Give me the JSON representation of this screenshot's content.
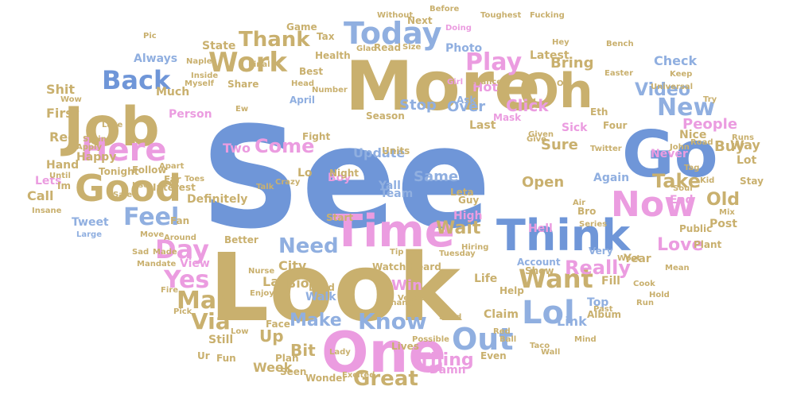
{
  "palette": {
    "blue": "#6f96d8",
    "tan": "#c9b06e",
    "pink": "#eb9ce0",
    "light_blue": "#90afe0"
  },
  "words": [
    {
      "text": "See"
    },
    {
      "text": "Look"
    },
    {
      "text": "More"
    },
    {
      "text": "One"
    },
    {
      "text": "Go"
    },
    {
      "text": "Time"
    },
    {
      "text": "Job"
    },
    {
      "text": "Oh"
    },
    {
      "text": "Think"
    },
    {
      "text": "Good"
    },
    {
      "text": "Here"
    },
    {
      "text": "Now"
    },
    {
      "text": "Today"
    },
    {
      "text": "Back"
    },
    {
      "text": "Work"
    },
    {
      "text": "Want"
    },
    {
      "text": "Lol"
    },
    {
      "text": "Out"
    },
    {
      "text": "Day"
    },
    {
      "text": "Man"
    },
    {
      "text": "Yes"
    },
    {
      "text": "Feel"
    },
    {
      "text": "Play"
    },
    {
      "text": "Know"
    },
    {
      "text": "Great"
    },
    {
      "text": "Really"
    },
    {
      "text": "New"
    },
    {
      "text": "Via"
    },
    {
      "text": "Thank"
    },
    {
      "text": "Need"
    },
    {
      "text": "Come"
    },
    {
      "text": "Take"
    },
    {
      "text": "Make"
    },
    {
      "text": "Video"
    },
    {
      "text": "Wait"
    },
    {
      "text": "Love"
    },
    {
      "text": "Old"
    },
    {
      "text": "Thing"
    },
    {
      "text": "Bring"
    },
    {
      "text": "People"
    },
    {
      "text": "Stop"
    },
    {
      "text": "Sure"
    },
    {
      "text": "Open"
    },
    {
      "text": "Buy"
    },
    {
      "text": "Same"
    },
    {
      "text": "Bit"
    },
    {
      "text": "Click"
    },
    {
      "text": "Over"
    },
    {
      "text": "Check"
    },
    {
      "text": "Lot"
    },
    {
      "text": "Way"
    },
    {
      "text": "Win"
    },
    {
      "text": "Link"
    },
    {
      "text": "Week"
    },
    {
      "text": "Always"
    },
    {
      "text": "Update"
    },
    {
      "text": "First"
    },
    {
      "text": "Red"
    },
    {
      "text": "Shit"
    },
    {
      "text": "Happy"
    },
    {
      "text": "Call"
    },
    {
      "text": "Tweet"
    },
    {
      "text": "Definitely"
    },
    {
      "text": "City"
    },
    {
      "text": "Bio"
    },
    {
      "text": "Latest"
    },
    {
      "text": "Photo"
    },
    {
      "text": "Person"
    },
    {
      "text": "Stay"
    },
    {
      "text": "Walk"
    },
    {
      "text": "Life"
    },
    {
      "text": "Hot"
    },
    {
      "text": "Team"
    },
    {
      "text": "Two"
    },
    {
      "text": "Boy"
    },
    {
      "text": "Night"
    },
    {
      "text": "Top"
    },
    {
      "text": "Never"
    },
    {
      "text": "End"
    },
    {
      "text": "Post"
    },
    {
      "text": "Lets"
    },
    {
      "text": "Hand"
    },
    {
      "text": "Year"
    },
    {
      "text": "Nice"
    },
    {
      "text": "Still"
    },
    {
      "text": "Hell"
    },
    {
      "text": "Yall"
    },
    {
      "text": "Damn"
    },
    {
      "text": "Again"
    },
    {
      "text": "Sick"
    },
    {
      "text": "Last"
    },
    {
      "text": "Fill"
    },
    {
      "text": "Best"
    },
    {
      "text": "Much"
    },
    {
      "text": "Share"
    },
    {
      "text": "High"
    },
    {
      "text": "Very"
    },
    {
      "text": "Seen"
    },
    {
      "text": "Up"
    },
    {
      "text": "Far"
    },
    {
      "text": "Land"
    },
    {
      "text": "Wonder"
    },
    {
      "text": "Excited"
    },
    {
      "text": "Fun"
    },
    {
      "text": "Plan"
    },
    {
      "text": "Face"
    },
    {
      "text": "Lives"
    },
    {
      "text": "Ask"
    },
    {
      "text": "Read"
    },
    {
      "text": "Game"
    },
    {
      "text": "State"
    },
    {
      "text": "Health"
    },
    {
      "text": "Next"
    },
    {
      "text": "Doing"
    },
    {
      "text": "Tax"
    },
    {
      "text": "Size"
    },
    {
      "text": "Girl"
    },
    {
      "text": "Chances"
    },
    {
      "text": "Four"
    },
    {
      "text": "Public"
    },
    {
      "text": "Series"
    },
    {
      "text": "Plant"
    },
    {
      "text": "Mean"
    },
    {
      "text": "Woot"
    },
    {
      "text": "Account"
    },
    {
      "text": "Mask"
    },
    {
      "text": "Season"
    },
    {
      "text": "April"
    },
    {
      "text": "Fight"
    },
    {
      "text": "Units"
    },
    {
      "text": "Guy"
    },
    {
      "text": "Leta"
    },
    {
      "text": "Start"
    },
    {
      "text": "Watch"
    },
    {
      "text": "Heard"
    },
    {
      "text": "Tuesday"
    },
    {
      "text": "Show"
    },
    {
      "text": "Help"
    },
    {
      "text": "Album"
    },
    {
      "text": "Claim"
    },
    {
      "text": "Even"
    },
    {
      "text": "Better"
    },
    {
      "text": "View"
    },
    {
      "text": "Nurse"
    },
    {
      "text": "Enjoy"
    },
    {
      "text": "Interest"
    },
    {
      "text": "Follow"
    },
    {
      "text": "Made"
    },
    {
      "text": "Tonight"
    },
    {
      "text": "Spring"
    },
    {
      "text": "Apply"
    },
    {
      "text": "Fan"
    },
    {
      "text": "Toes"
    },
    {
      "text": "Apart"
    },
    {
      "text": "Large"
    },
    {
      "text": "Move"
    },
    {
      "text": "Around"
    },
    {
      "text": "Talk"
    },
    {
      "text": "Crazy"
    },
    {
      "text": "Try"
    },
    {
      "text": "John"
    },
    {
      "text": "Road"
    },
    {
      "text": "Fucking"
    },
    {
      "text": "Toughest"
    },
    {
      "text": "Before"
    },
    {
      "text": "Without"
    },
    {
      "text": "Glad"
    },
    {
      "text": "Final"
    },
    {
      "text": "Myself"
    },
    {
      "text": "Inside"
    },
    {
      "text": "Head"
    },
    {
      "text": "Number"
    },
    {
      "text": "Wow"
    },
    {
      "text": "Twitter"
    },
    {
      "text": "Universal"
    },
    {
      "text": "Eth"
    },
    {
      "text": "Bench"
    },
    {
      "text": "Easter"
    },
    {
      "text": "Keep"
    },
    {
      "text": "Until"
    },
    {
      "text": "Insane"
    },
    {
      "text": "Naples"
    },
    {
      "text": "Pick"
    },
    {
      "text": "Fire"
    },
    {
      "text": "Bro"
    },
    {
      "text": "Air"
    },
    {
      "text": "Give"
    },
    {
      "text": "Given"
    },
    {
      "text": "Runs"
    },
    {
      "text": "Tip"
    },
    {
      "text": "Hiring"
    },
    {
      "text": "Change"
    },
    {
      "text": "Vegas"
    },
    {
      "text": "Possible"
    },
    {
      "text": "Lady"
    },
    {
      "text": "Send"
    },
    {
      "text": "Taco"
    },
    {
      "text": "Past"
    },
    {
      "text": "Mind"
    },
    {
      "text": "Wall"
    },
    {
      "text": "Red"
    },
    {
      "text": "Ball"
    },
    {
      "text": "Sad"
    },
    {
      "text": "Mandate"
    },
    {
      "text": "Im"
    },
    {
      "text": "Ur"
    },
    {
      "text": "Lo"
    },
    {
      "text": "La"
    },
    {
      "text": "Hey"
    },
    {
      "text": "Oil"
    },
    {
      "text": "Pic"
    },
    {
      "text": "Ew"
    },
    {
      "text": "Tag"
    },
    {
      "text": "Kid"
    },
    {
      "text": "Mix"
    },
    {
      "text": "Use"
    },
    {
      "text": "Low"
    },
    {
      "text": "Sale"
    },
    {
      "text": "Lake"
    },
    {
      "text": "Soul"
    },
    {
      "text": "Cook"
    },
    {
      "text": "Hold"
    },
    {
      "text": "Run"
    }
  ]
}
